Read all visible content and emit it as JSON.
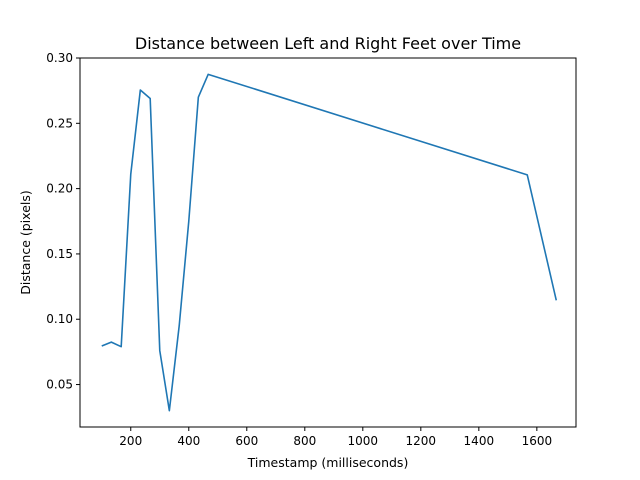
{
  "chart_data": {
    "type": "line",
    "title": "Distance between Left and Right Feet over Time",
    "xlabel": "Timestamp (milliseconds)",
    "ylabel": "Distance (pixels)",
    "xlim": [
      25,
      1735
    ],
    "ylim": [
      0.0175,
      0.3
    ],
    "x_ticks": [
      200,
      400,
      600,
      800,
      1000,
      1200,
      1400,
      1600
    ],
    "y_ticks": [
      0.05,
      0.1,
      0.15,
      0.2,
      0.25,
      0.3
    ],
    "x_tick_labels": [
      "200",
      "400",
      "600",
      "800",
      "1000",
      "1200",
      "1400",
      "1600"
    ],
    "y_tick_labels": [
      "0.05",
      "0.10",
      "0.15",
      "0.20",
      "0.25",
      "0.30"
    ],
    "grid": false,
    "line_color": "#1f77b4",
    "series": [
      {
        "x": [
          100,
          133,
          167,
          200,
          233,
          267,
          300,
          333,
          367,
          400,
          433,
          467,
          1567,
          1667
        ],
        "y": [
          0.0795,
          0.0825,
          0.079,
          0.211,
          0.2755,
          0.269,
          0.076,
          0.03,
          0.095,
          0.175,
          0.27,
          0.2875,
          0.2105,
          0.1145
        ]
      }
    ]
  }
}
